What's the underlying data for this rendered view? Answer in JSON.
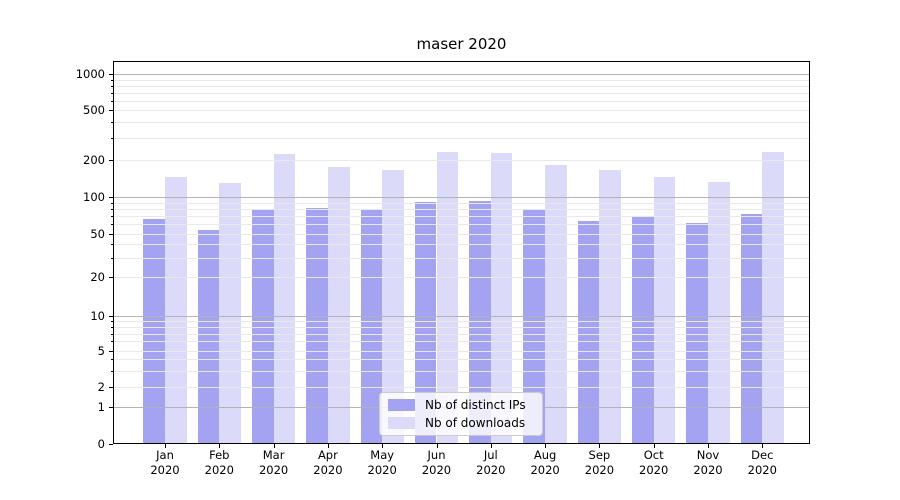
{
  "chart_data": {
    "type": "bar",
    "title": "maser 2020",
    "year": "2020",
    "months": [
      "Jan",
      "Feb",
      "Mar",
      "Apr",
      "May",
      "Jun",
      "Jul",
      "Aug",
      "Sep",
      "Oct",
      "Nov",
      "Dec"
    ],
    "series": [
      {
        "name": "Nb of distinct IPs",
        "color": "#a4a3f1",
        "values": [
          66,
          53,
          78,
          81,
          78,
          91,
          93,
          79,
          63,
          70,
          61,
          72
        ]
      },
      {
        "name": "Nb of downloads",
        "color": "#dbdaf9",
        "values": [
          145,
          131,
          222,
          176,
          166,
          232,
          226,
          183,
          166,
          145,
          132,
          230
        ]
      }
    ],
    "y_axis": {
      "scale": "symlog",
      "tick_labels": [
        "0",
        "1",
        "2",
        "5",
        "10",
        "20",
        "50",
        "100",
        "200",
        "500",
        "1000"
      ],
      "tick_values": [
        0,
        1,
        2,
        5,
        10,
        20,
        50,
        100,
        200,
        500,
        1000
      ]
    },
    "x_axis": {
      "tick_labels": [
        "Jan\n2020",
        "Feb\n2020",
        "Mar\n2020",
        "Apr\n2020",
        "May\n2020",
        "Jun\n2020",
        "Jul\n2020",
        "Aug\n2020",
        "Sep\n2020",
        "Oct\n2020",
        "Nov\n2020",
        "Dec\n2020"
      ]
    },
    "grid": true,
    "legend_position": "lower center",
    "grid_major_color": "#b3b3b3",
    "grid_minor_color": "#e9e9e9"
  }
}
